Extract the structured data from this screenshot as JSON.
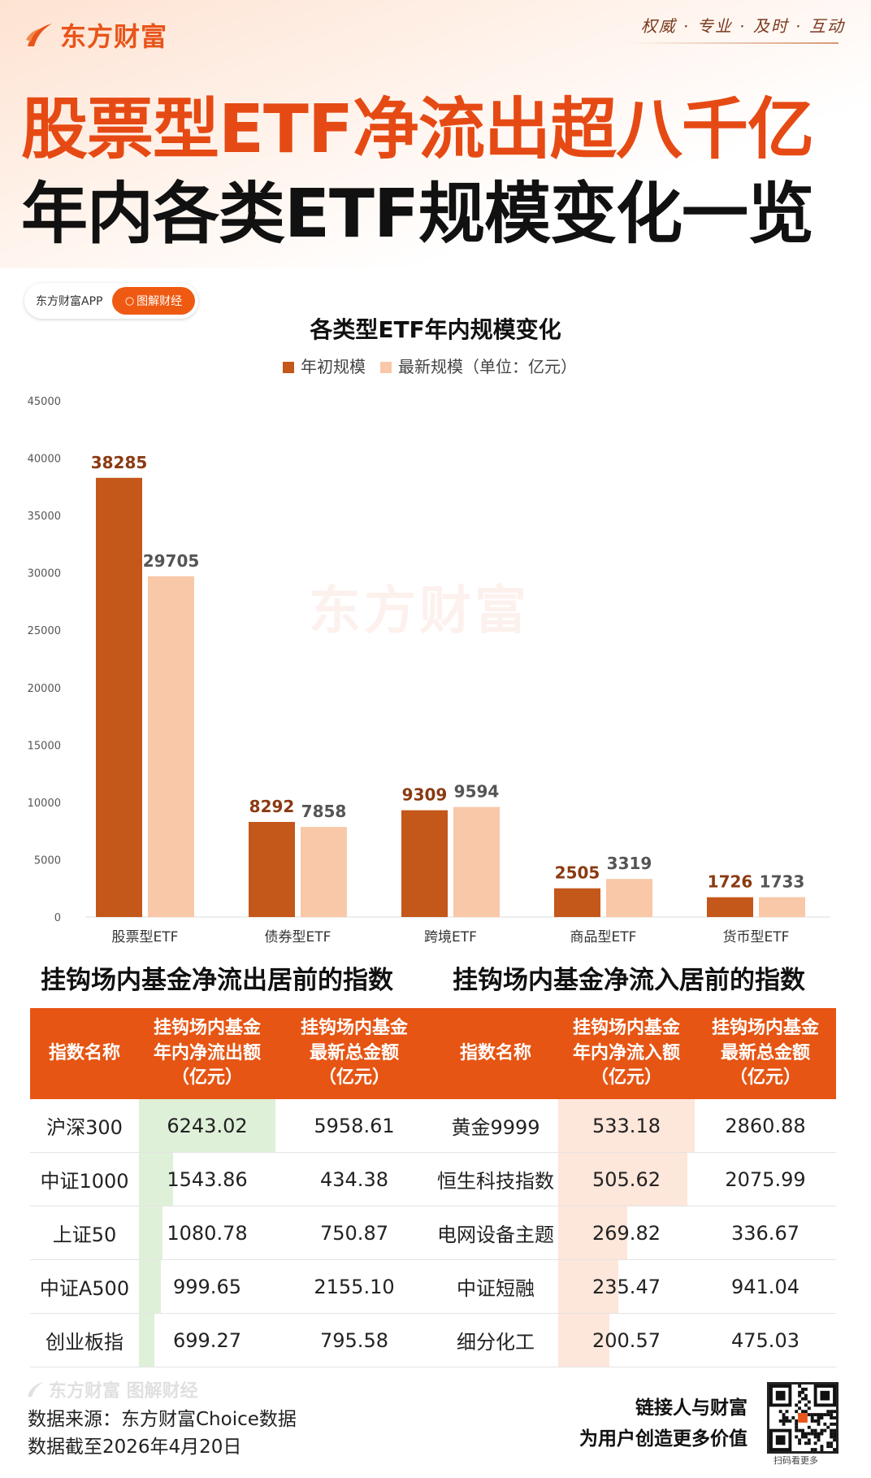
{
  "brand": {
    "name": "东方财富",
    "slogan": "权威 · 专业 · 及时 · 互动"
  },
  "title": {
    "line1": "股票型ETF净流出超八千亿",
    "line2": "年内各类ETF规模变化一览"
  },
  "pill": {
    "app": "东方财富APP",
    "button": "图解财经"
  },
  "chart_data": {
    "type": "bar",
    "title": "各类型ETF年内规模变化",
    "categories": [
      "股票型ETF",
      "债券型ETF",
      "跨境ETF",
      "商品型ETF",
      "货币型ETF"
    ],
    "series": [
      {
        "name": "年初规模",
        "values": [
          38285,
          8292,
          9309,
          2505,
          1726
        ],
        "color": "#c4571a",
        "label_color": "#8b3a12"
      },
      {
        "name": "最新规模（单位：亿元）",
        "values": [
          29705,
          7858,
          9594,
          3319,
          1733
        ],
        "color": "#f8c8a8",
        "label_color": "#555555"
      }
    ],
    "yticks": [
      0,
      5000,
      10000,
      15000,
      20000,
      25000,
      30000,
      35000,
      40000,
      45000
    ],
    "ylim": [
      0,
      45000
    ],
    "legend": "top-center",
    "grid": false
  },
  "outflow": {
    "title": "挂钩场内基金净流出居前的指数",
    "headers": [
      "指数名称",
      "挂钩场内基金\n年内净流出额\n（亿元）",
      "挂钩场内基金\n最新总金额\n（亿元）"
    ],
    "bar_color": "#dff0d8",
    "max": 6243.02,
    "rows": [
      {
        "name": "沪深300",
        "flow": 6243.02,
        "flow_text": "6243.02",
        "total": "5958.61"
      },
      {
        "name": "中证1000",
        "flow": 1543.86,
        "flow_text": "1543.86",
        "total": "434.38"
      },
      {
        "name": "上证50",
        "flow": 1080.78,
        "flow_text": "1080.78",
        "total": "750.87"
      },
      {
        "name": "中证A500",
        "flow": 999.65,
        "flow_text": "999.65",
        "total": "2155.10"
      },
      {
        "name": "创业板指",
        "flow": 699.27,
        "flow_text": "699.27",
        "total": "795.58"
      }
    ]
  },
  "inflow": {
    "title": "挂钩场内基金净流入居前的指数",
    "headers": [
      "指数名称",
      "挂钩场内基金\n年内净流入额\n（亿元）",
      "挂钩场内基金\n最新总金额\n（亿元）"
    ],
    "bar_color": "#fde6da",
    "max": 533.18,
    "rows": [
      {
        "name": "黄金9999",
        "flow": 533.18,
        "flow_text": "533.18",
        "total": "2860.88"
      },
      {
        "name": "恒生科技指数",
        "flow": 505.62,
        "flow_text": "505.62",
        "total": "2075.99"
      },
      {
        "name": "电网设备主题",
        "flow": 269.82,
        "flow_text": "269.82",
        "total": "336.67"
      },
      {
        "name": "中证短融",
        "flow": 235.47,
        "flow_text": "235.47",
        "total": "941.04"
      },
      {
        "name": "细分化工",
        "flow": 200.57,
        "flow_text": "200.57",
        "total": "475.03"
      }
    ]
  },
  "footer": {
    "brand": "东方财富 图解财经",
    "source": "数据来源：东方财富Choice数据",
    "date": "数据截至2026年4月20日",
    "slogan1": "链接人与财富",
    "slogan2": "为用户创造更多价值",
    "qr_caption": "扫码看更多"
  }
}
